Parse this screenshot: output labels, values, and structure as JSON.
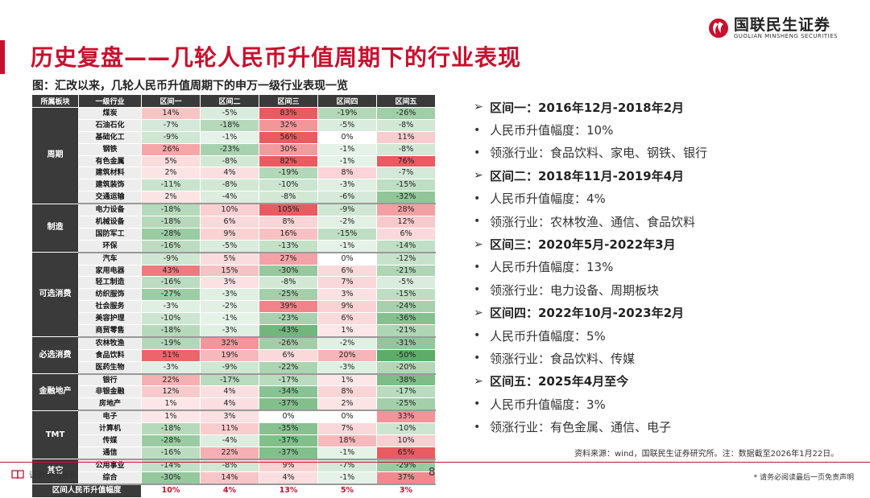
{
  "title": "历史复盘——几轮人民币升值周期下的行业表现",
  "brand": {
    "cn": "国联民生证券",
    "en": "GUOLIAN MINSHENG SECURITIES"
  },
  "subtitle": "图：汇改以来，几轮人民币升值周期下的申万一级行业表现一览",
  "table": {
    "headers": [
      "所属板块",
      "一级行业",
      "区间一",
      "区间二",
      "区间三",
      "区间四",
      "区间五"
    ],
    "groups": [
      {
        "sector": "周期",
        "rows": [
          [
            "煤炭",
            "14%",
            "-5%",
            "83%",
            "-19%",
            "-26%"
          ],
          [
            "石油石化",
            "-7%",
            "-18%",
            "32%",
            "-5%",
            "-8%"
          ],
          [
            "基础化工",
            "-9%",
            "-1%",
            "56%",
            "0%",
            "11%"
          ],
          [
            "钢铁",
            "26%",
            "-23%",
            "30%",
            "-1%",
            "-8%"
          ],
          [
            "有色金属",
            "5%",
            "-8%",
            "82%",
            "-1%",
            "76%"
          ],
          [
            "建筑材料",
            "2%",
            "4%",
            "-19%",
            "8%",
            "-7%"
          ],
          [
            "建筑装饰",
            "-11%",
            "-8%",
            "-10%",
            "-3%",
            "-15%"
          ],
          [
            "交通运输",
            "2%",
            "-4%",
            "-8%",
            "-6%",
            "-32%"
          ]
        ]
      },
      {
        "sector": "制造",
        "rows": [
          [
            "电力设备",
            "-18%",
            "10%",
            "105%",
            "-9%",
            "28%"
          ],
          [
            "机械设备",
            "-18%",
            "6%",
            "8%",
            "-2%",
            "12%"
          ],
          [
            "国防军工",
            "-28%",
            "9%",
            "16%",
            "-15%",
            "6%"
          ],
          [
            "环保",
            "-16%",
            "-5%",
            "-13%",
            "-1%",
            "-14%"
          ]
        ]
      },
      {
        "sector": "可选消费",
        "rows": [
          [
            "汽车",
            "-9%",
            "5%",
            "27%",
            "0%",
            "-12%"
          ],
          [
            "家用电器",
            "43%",
            "15%",
            "-30%",
            "6%",
            "-21%"
          ],
          [
            "轻工制造",
            "-16%",
            "3%",
            "-8%",
            "7%",
            "-5%"
          ],
          [
            "纺织服饰",
            "-27%",
            "-3%",
            "-25%",
            "3%",
            "-15%"
          ],
          [
            "社会服务",
            "-3%",
            "-2%",
            "39%",
            "9%",
            "-24%"
          ],
          [
            "美容护理",
            "-10%",
            "-1%",
            "-23%",
            "6%",
            "-36%"
          ],
          [
            "商贸零售",
            "-18%",
            "-3%",
            "-43%",
            "1%",
            "-21%"
          ]
        ]
      },
      {
        "sector": "必选消费",
        "rows": [
          [
            "农林牧渔",
            "-19%",
            "32%",
            "-26%",
            "-2%",
            "-31%"
          ],
          [
            "食品饮料",
            "51%",
            "19%",
            "6%",
            "20%",
            "-50%"
          ],
          [
            "医药生物",
            "-3%",
            "-9%",
            "-22%",
            "-3%",
            "-20%"
          ]
        ]
      },
      {
        "sector": "金融地产",
        "rows": [
          [
            "银行",
            "22%",
            "-17%",
            "-17%",
            "1%",
            "-38%"
          ],
          [
            "非银金融",
            "12%",
            "4%",
            "-34%",
            "8%",
            "-17%"
          ],
          [
            "房地产",
            "1%",
            "4%",
            "-37%",
            "2%",
            "-25%"
          ]
        ]
      },
      {
        "sector": "TMT",
        "rows": [
          [
            "电子",
            "1%",
            "3%",
            "0%",
            "0%",
            "33%"
          ],
          [
            "计算机",
            "-18%",
            "11%",
            "-35%",
            "7%",
            "-10%"
          ],
          [
            "传媒",
            "-28%",
            "-4%",
            "-37%",
            "18%",
            "10%"
          ],
          [
            "通信",
            "-16%",
            "22%",
            "-37%",
            "-1%",
            "65%"
          ]
        ]
      },
      {
        "sector": "其它",
        "rows": [
          [
            "公用事业",
            "-14%",
            "-8%",
            "9%",
            "-7%",
            "-29%"
          ],
          [
            "综合",
            "-30%",
            "14%",
            "4%",
            "-1%",
            "37%"
          ]
        ]
      }
    ],
    "summary_label": "区间人民币升值幅度",
    "summary": [
      "10%",
      "4%",
      "13%",
      "5%",
      "3%"
    ]
  },
  "points": [
    {
      "type": "h",
      "text": "区间一：2016年12月-2018年2月"
    },
    {
      "type": "b",
      "text": "人民币升值幅度：10%"
    },
    {
      "type": "b",
      "text": "领涨行业：食品饮料、家电、钢铁、银行"
    },
    {
      "type": "h",
      "text": "区间二：2018年11月-2019年4月"
    },
    {
      "type": "b",
      "text": "人民币升值幅度：4%"
    },
    {
      "type": "b",
      "text": "领涨行业：农林牧渔、通信、食品饮料"
    },
    {
      "type": "h",
      "text": "区间三：2020年5月-2022年3月"
    },
    {
      "type": "b",
      "text": "人民币升值幅度：13%"
    },
    {
      "type": "b",
      "text": "领涨行业：电力设备、周期板块"
    },
    {
      "type": "h",
      "text": "区间四：2022年10月-2023年2月"
    },
    {
      "type": "b",
      "text": "人民币升值幅度：5%"
    },
    {
      "type": "b",
      "text": "领涨行业：食品饮料、传媒"
    },
    {
      "type": "h",
      "text": "区间五：2025年4月至今"
    },
    {
      "type": "b",
      "text": "人民币升值幅度：3%"
    },
    {
      "type": "b",
      "text": "领涨行业：有色金属、通信、电子"
    }
  ],
  "source": "资料来源：wind，国联民生证券研究所。注：数据截至2026年1月22日。",
  "footer": {
    "left": "证券研究报告",
    "page": "8",
    "right": "* 请务必阅读最后一页免责声明"
  },
  "colors": {
    "brand_red": "#c8102e",
    "positive": "#e8484f",
    "negative": "#3d9b4b",
    "header": "#3a3a3a"
  }
}
